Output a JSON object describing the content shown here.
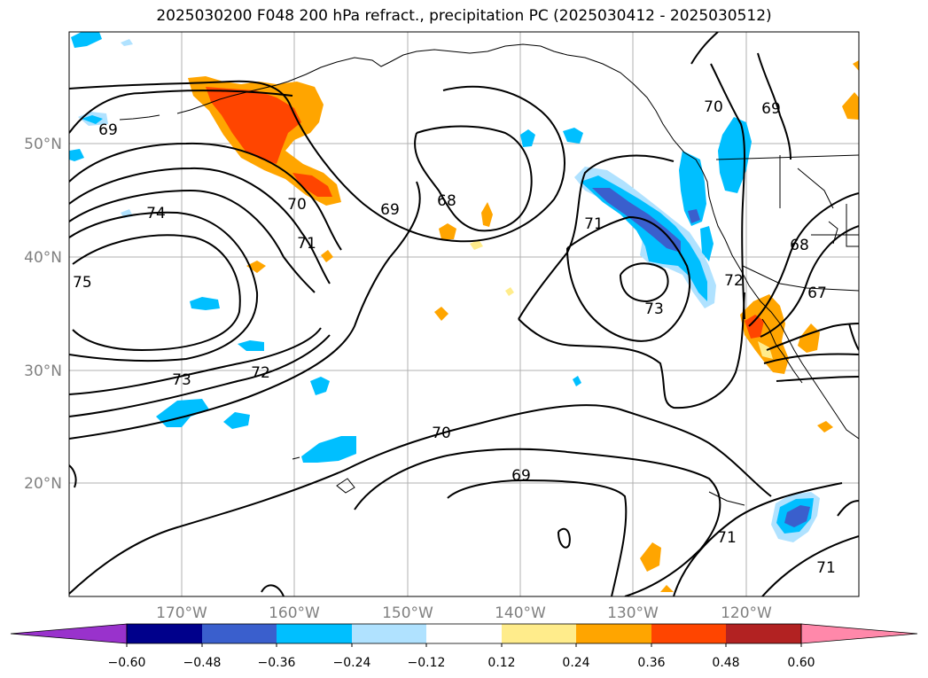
{
  "title": "2025030200 F048 200 hPa refract., precipitation PC (2025030412 - 2025030512)",
  "map": {
    "lat_ticks": [
      "50°N",
      "40°N",
      "30°N",
      "20°N"
    ],
    "lon_ticks": [
      "170°W",
      "160°W",
      "150°W",
      "140°W",
      "130°W",
      "120°W"
    ],
    "grid": true,
    "contour_labels": [
      "74",
      "73",
      "72",
      "71",
      "70",
      "69",
      "68",
      "70",
      "69",
      "71",
      "73",
      "68",
      "69",
      "70",
      "71",
      "71",
      "69",
      "67",
      "72",
      "75"
    ]
  },
  "colorbar": {
    "ticks": [
      "−0.60",
      "−0.48",
      "−0.36",
      "−0.24",
      "−0.12",
      "0.12",
      "0.24",
      "0.36",
      "0.48",
      "0.60"
    ],
    "colors": [
      "#9932cc",
      "#00008b",
      "#3a5fcd",
      "#00bfff",
      "#b0e2ff",
      "#ffffff",
      "#ffec8b",
      "#ffa500",
      "#ff4500",
      "#b22222",
      "#ff88aa"
    ],
    "extend": "both"
  },
  "shading_colors": {
    "light_blue": "#b0e2ff",
    "blue": "#00bfff",
    "royal_blue": "#3a5fcd",
    "light_yellow": "#ffec8b",
    "orange": "#ffa500",
    "red_orange": "#ff4500"
  }
}
